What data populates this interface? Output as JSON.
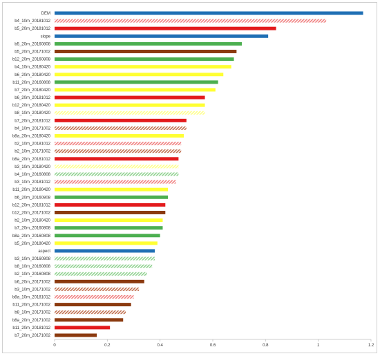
{
  "chart_data": {
    "type": "bar",
    "orientation": "horizontal",
    "title": "",
    "xlabel": "",
    "ylabel": "",
    "xlim": [
      0,
      1.2
    ],
    "x_ticks": [
      "0",
      "0.2",
      "0.4",
      "0.6",
      "0.8",
      "1",
      "1.2"
    ],
    "grid": false,
    "legend": "none",
    "colors": {
      "blue": "#1f6fb4",
      "red": "#e31a1c",
      "pink_hatch": "#f08080",
      "brown": "#8b3a0f",
      "brown_hatch": "#c07050",
      "green": "#4caf50",
      "green_hatch": "#8fd18f",
      "yellow": "#ffff33",
      "yellow_hatch": "#ffff88"
    },
    "categories": [
      "DEM",
      "b4_10m_20181012",
      "b5_20m_20181012",
      "slope",
      "b5_20m_20160808",
      "b5_20m_20171002",
      "b12_20m_20160808",
      "b4_10m_20180420",
      "b6_20m_20180420",
      "b11_20m_20160808",
      "b7_20m_20180420",
      "b6_20m_20181012",
      "b12_20m_20180420",
      "b8_10m_20180420",
      "b7_20m_20181012",
      "b4_10m_20171002",
      "b8a_20m_20180420",
      "b2_10m_20181012",
      "b2_10m_20171002",
      "b8a_20m_20181012",
      "b3_10m_20180420",
      "b4_10m_20160808",
      "b3_10m_20181012",
      "b11_20m_20180420",
      "b6_20m_20160808",
      "b12_20m_20181012",
      "b12_20m_20171002",
      "b2_10m_20180420",
      "b7_20m_20160808",
      "b8a_20m_20160808",
      "b5_20m_20180420",
      "aspect",
      "b3_10m_20160808",
      "b8_10m_20160808",
      "b2_10m_20160808",
      "b6_20m_20171002",
      "b3_10m_20171002",
      "b8a_10m_20181012",
      "b11_20m_20171002",
      "b8_10m_20171002",
      "b8a_20m_20171002",
      "b11_20m_20181012",
      "b7_20m_20171002"
    ],
    "values": [
      1.17,
      1.03,
      0.84,
      0.81,
      0.71,
      0.69,
      0.68,
      0.67,
      0.64,
      0.62,
      0.61,
      0.57,
      0.57,
      0.57,
      0.5,
      0.5,
      0.49,
      0.48,
      0.48,
      0.47,
      0.47,
      0.47,
      0.46,
      0.43,
      0.43,
      0.42,
      0.42,
      0.41,
      0.41,
      0.4,
      0.39,
      0.38,
      0.38,
      0.37,
      0.35,
      0.34,
      0.32,
      0.3,
      0.29,
      0.27,
      0.26,
      0.21,
      0.16
    ],
    "bar_styles": [
      "blue",
      "pink_hatch",
      "red",
      "blue",
      "green",
      "brown",
      "green",
      "yellow",
      "yellow",
      "green",
      "yellow",
      "red",
      "yellow",
      "yellow_hatch",
      "red",
      "brown_hatch",
      "yellow",
      "pink_hatch",
      "brown_hatch",
      "red",
      "yellow_hatch",
      "green_hatch",
      "pink_hatch",
      "yellow",
      "green",
      "red",
      "brown",
      "yellow",
      "green",
      "green",
      "yellow",
      "blue",
      "green_hatch",
      "green_hatch",
      "green_hatch",
      "brown",
      "brown_hatch",
      "pink_hatch",
      "brown",
      "brown_hatch",
      "brown",
      "red",
      "brown"
    ]
  }
}
